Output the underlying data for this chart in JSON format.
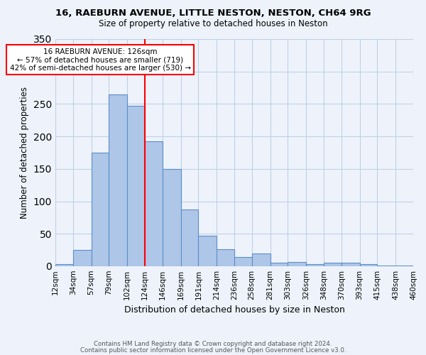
{
  "title1": "16, RAEBURN AVENUE, LITTLE NESTON, NESTON, CH64 9RG",
  "title2": "Size of property relative to detached houses in Neston",
  "xlabel": "Distribution of detached houses by size in Neston",
  "ylabel": "Number of detached properties",
  "bin_edges": [
    12,
    34,
    57,
    79,
    102,
    124,
    146,
    169,
    191,
    214,
    236,
    258,
    281,
    303,
    326,
    348,
    370,
    393,
    415,
    438,
    460
  ],
  "bar_heights": [
    3,
    25,
    175,
    265,
    247,
    192,
    150,
    88,
    47,
    26,
    14,
    20,
    6,
    7,
    3,
    5,
    5,
    3,
    1,
    1
  ],
  "bar_color": "#aec6e8",
  "bar_edge_color": "#5b8fc9",
  "vline_x": 124,
  "vline_color": "red",
  "ylim": [
    0,
    350
  ],
  "yticks": [
    0,
    50,
    100,
    150,
    200,
    250,
    300,
    350
  ],
  "tick_labels": [
    "12sqm",
    "34sqm",
    "57sqm",
    "79sqm",
    "102sqm",
    "124sqm",
    "146sqm",
    "169sqm",
    "191sqm",
    "214sqm",
    "236sqm",
    "258sqm",
    "281sqm",
    "303sqm",
    "326sqm",
    "348sqm",
    "370sqm",
    "393sqm",
    "415sqm",
    "438sqm",
    "460sqm"
  ],
  "annotation_text": "16 RAEBURN AVENUE: 126sqm\n← 57% of detached houses are smaller (719)\n42% of semi-detached houses are larger (530) →",
  "annotation_fontsize": 7.5,
  "footer1": "Contains HM Land Registry data © Crown copyright and database right 2024.",
  "footer2": "Contains public sector information licensed under the Open Government Licence v3.0.",
  "background_color": "#eef3fb",
  "grid_color": "#c0cfe8",
  "title1_fontsize": 9.5,
  "title2_fontsize": 8.5,
  "ylabel_fontsize": 8.5,
  "xlabel_fontsize": 9.0
}
